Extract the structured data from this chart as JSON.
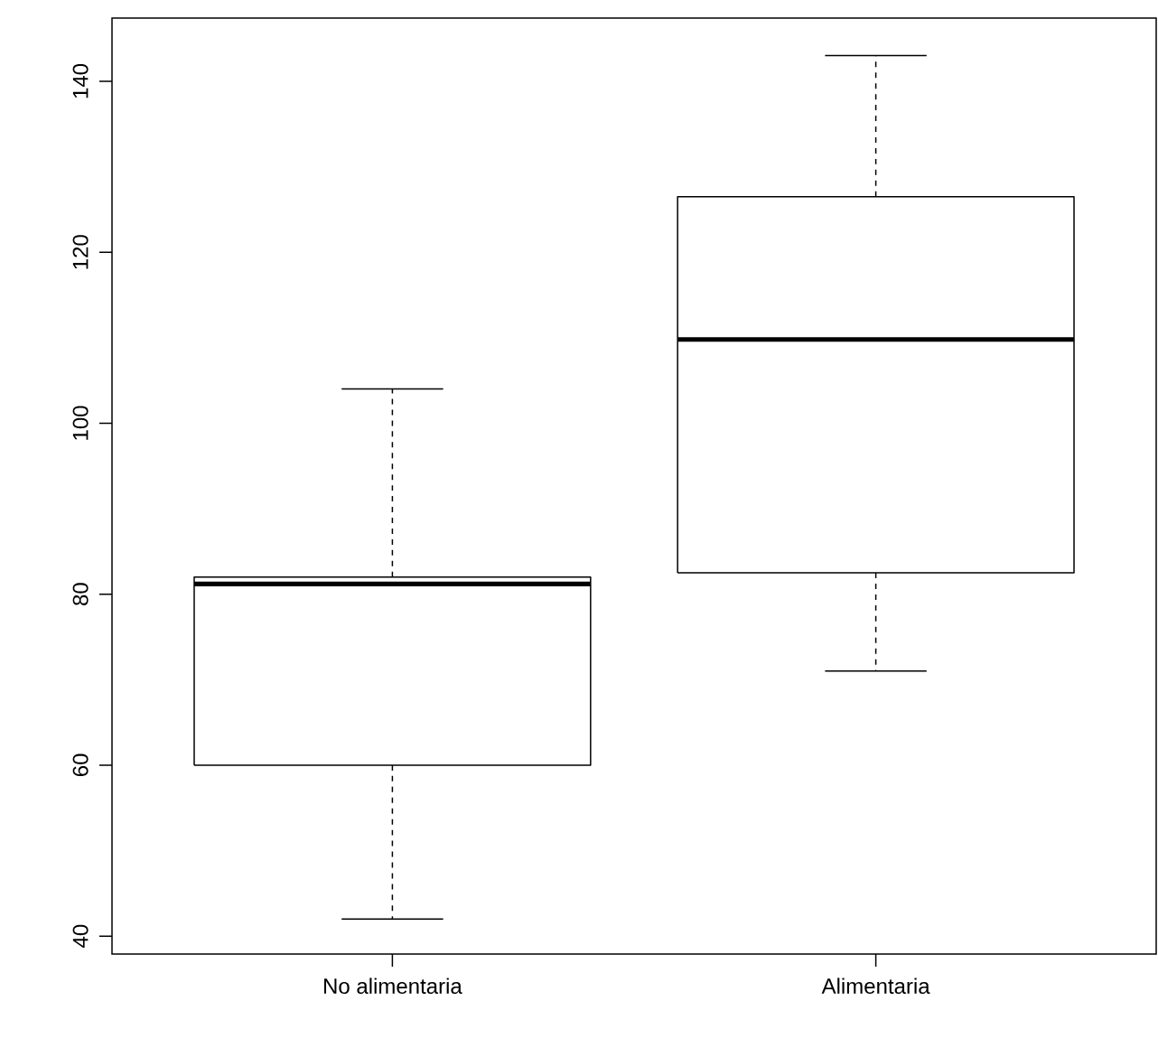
{
  "chart_data": {
    "type": "box",
    "categories": [
      "No alimentaria",
      "Alimentaria"
    ],
    "boxes": [
      {
        "low": 42,
        "q1": 60,
        "median": 81.2,
        "q3": 82,
        "high": 104
      },
      {
        "low": 71,
        "q1": 82.5,
        "median": 109.8,
        "q3": 126.5,
        "high": 143
      }
    ],
    "ylim": [
      37.9,
      147.4
    ],
    "yticks": [
      40,
      60,
      80,
      100,
      120,
      140
    ]
  }
}
